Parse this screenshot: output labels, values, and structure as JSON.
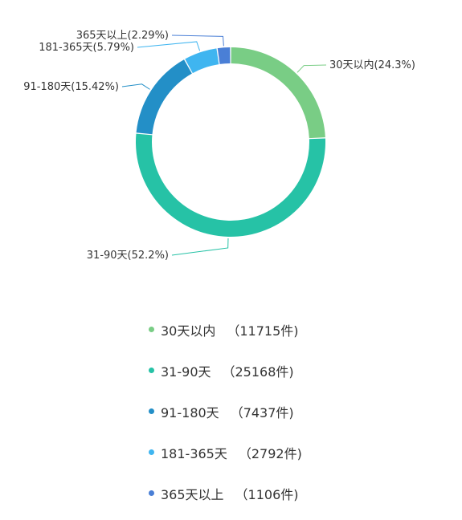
{
  "chart_data": {
    "type": "pie",
    "donut": true,
    "categories": [
      "30天以内",
      "31-90天",
      "91-180天",
      "181-365天",
      "365天以上"
    ],
    "values": [
      24.3,
      52.2,
      15.42,
      5.79,
      2.29
    ],
    "value_labels": [
      "24.3%",
      "52.2%",
      "15.42%",
      "5.79%",
      "2.29%"
    ],
    "slice_labels": [
      "30天以内(24.3%)",
      "31-90天(52.2%)",
      "91-180天(15.42%)",
      "181-365天(5.79%)",
      "365天以上(2.29%)"
    ],
    "counts": [
      11715,
      25168,
      7437,
      2792,
      1106
    ],
    "count_labels": [
      "（11715件)",
      "（25168件)",
      "（7437件)",
      "（2792件)",
      "（1106件)"
    ],
    "colors": [
      "#79cd85",
      "#26c2a6",
      "#238fc7",
      "#3fb5f0",
      "#4a7fd6"
    ],
    "start_angle": "top, clockwise",
    "legend_position": "bottom"
  }
}
